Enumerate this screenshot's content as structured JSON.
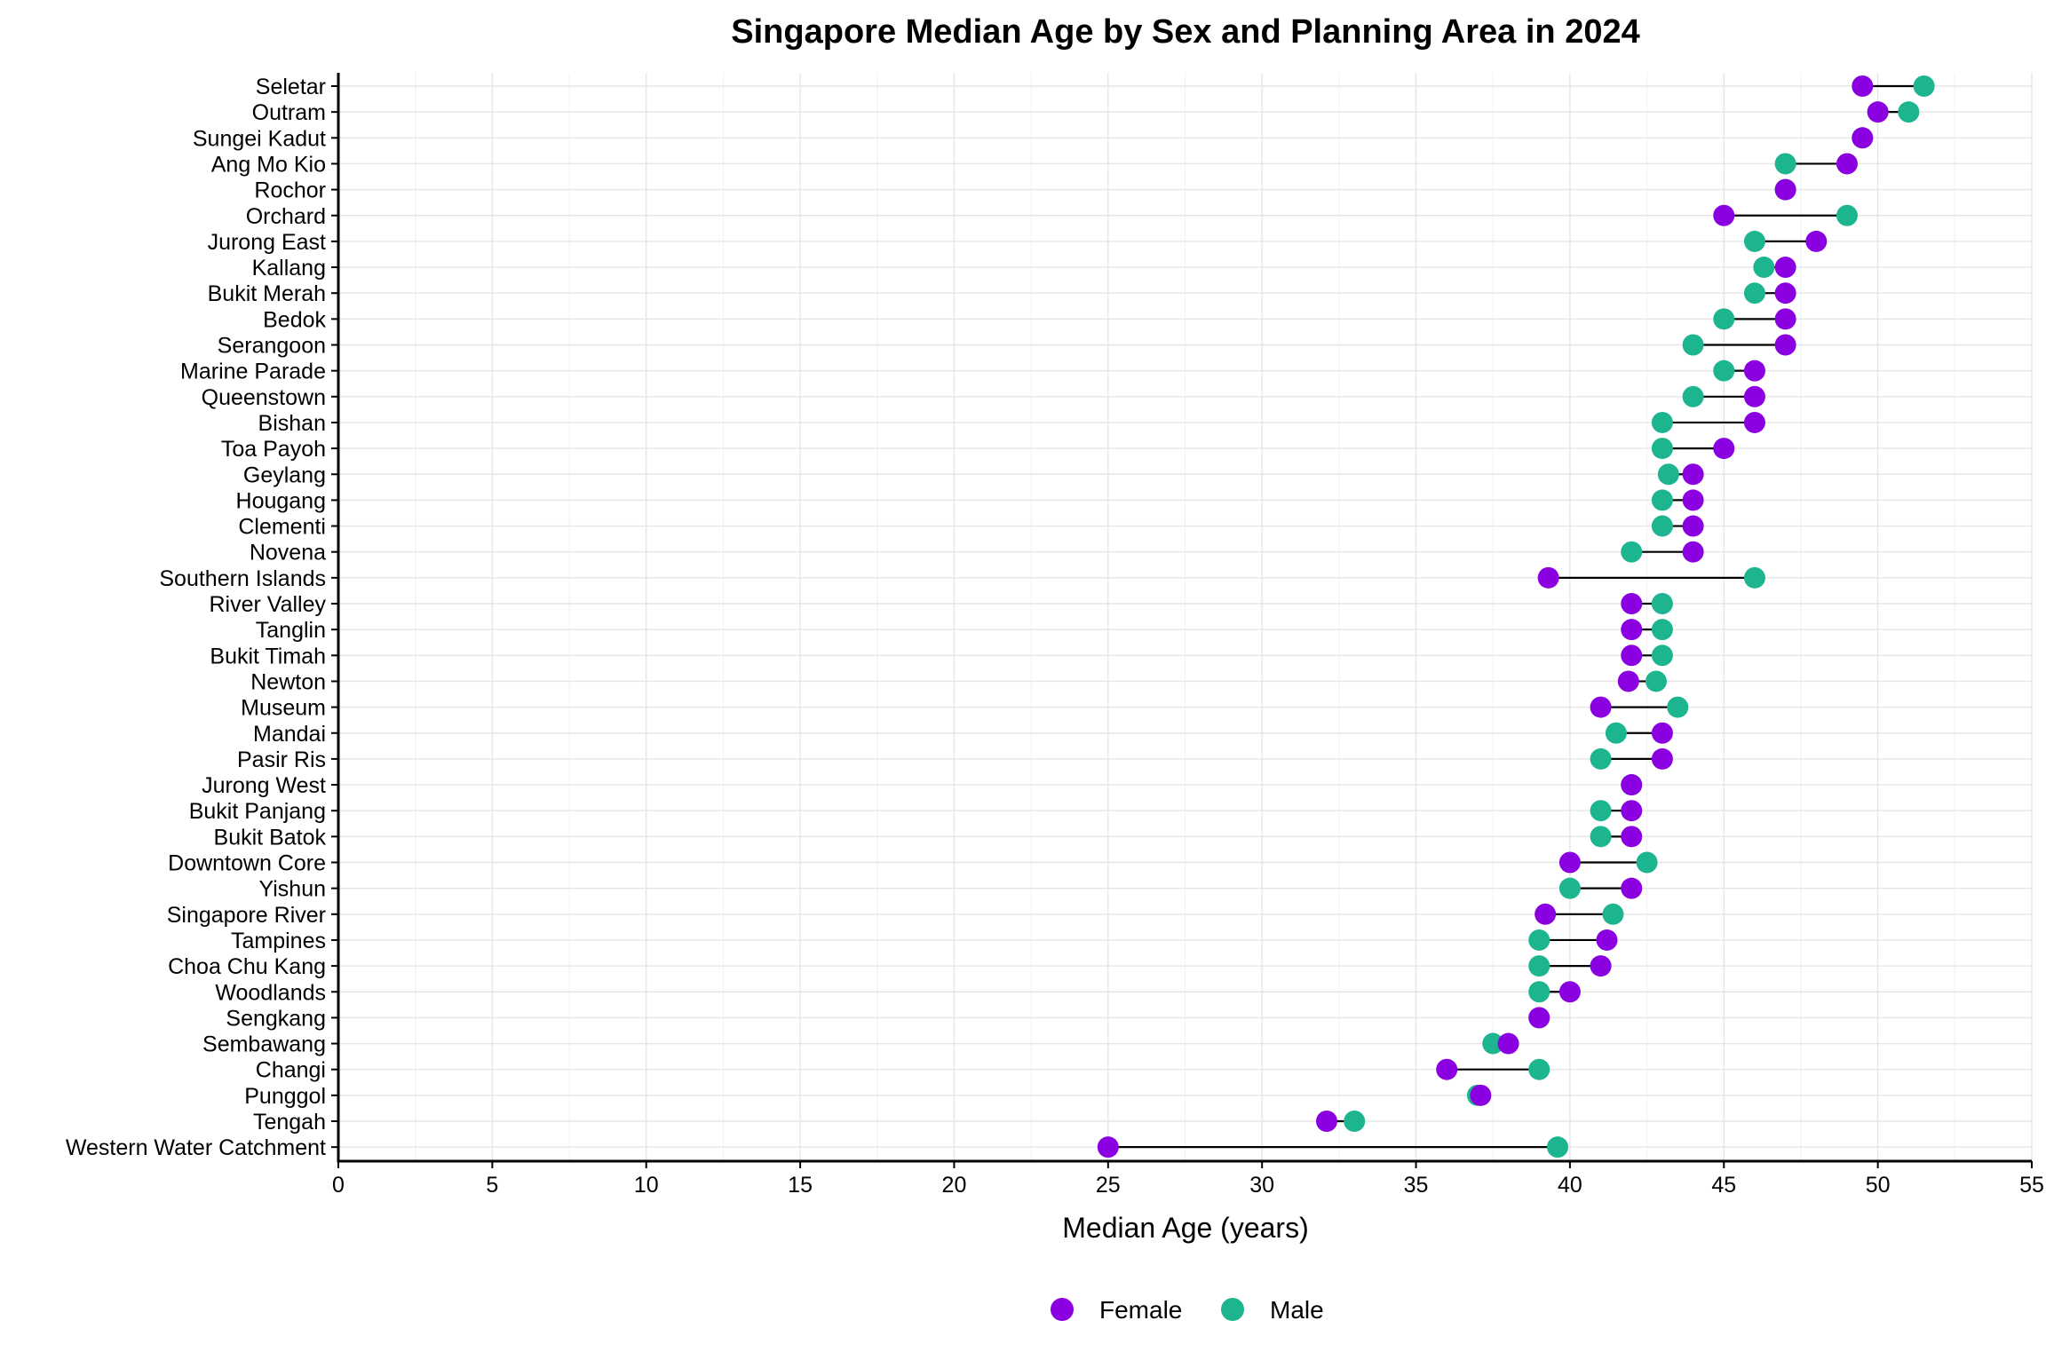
{
  "chart_data": {
    "type": "scatter",
    "subtype": "dumbbell",
    "title": "Singapore Median Age by Sex and Planning Area in 2024",
    "xlabel": "Median Age (years)",
    "ylabel": "",
    "xlim": [
      0,
      55
    ],
    "x_ticks": [
      "0",
      "5",
      "10",
      "15",
      "20",
      "25",
      "30",
      "35",
      "40",
      "45",
      "50",
      "55"
    ],
    "x_tick_values": [
      0,
      5,
      10,
      15,
      20,
      25,
      30,
      35,
      40,
      45,
      50,
      55
    ],
    "grid": true,
    "legend_position": "bottom",
    "colors": {
      "Female": "#8B00E0",
      "Male": "#1DB58F"
    },
    "categories": [
      "Seletar",
      "Outram",
      "Sungei Kadut",
      "Ang Mo Kio",
      "Rochor",
      "Orchard",
      "Jurong East",
      "Kallang",
      "Bukit Merah",
      "Bedok",
      "Serangoon",
      "Marine Parade",
      "Queenstown",
      "Bishan",
      "Toa Payoh",
      "Geylang",
      "Hougang",
      "Clementi",
      "Novena",
      "Southern Islands",
      "River Valley",
      "Tanglin",
      "Bukit Timah",
      "Newton",
      "Museum",
      "Mandai",
      "Pasir Ris",
      "Jurong West",
      "Bukit Panjang",
      "Bukit Batok",
      "Downtown Core",
      "Yishun",
      "Singapore River",
      "Tampines",
      "Choa Chu Kang",
      "Woodlands",
      "Sengkang",
      "Sembawang",
      "Changi",
      "Punggol",
      "Tengah",
      "Western Water Catchment"
    ],
    "series": [
      {
        "name": "Female",
        "values": [
          49.5,
          50,
          49.5,
          49,
          47,
          45,
          48,
          47,
          47,
          47,
          47,
          46,
          46,
          46,
          45,
          44,
          44,
          44,
          44,
          39.3,
          42,
          42,
          42,
          41.9,
          41,
          43,
          43,
          42,
          42,
          42,
          40,
          42,
          39.2,
          41.2,
          41,
          40,
          39,
          38,
          36,
          37.1,
          32.1,
          25
        ]
      },
      {
        "name": "Male",
        "values": [
          51.5,
          51,
          49.5,
          47,
          47,
          49,
          46,
          46.3,
          46,
          45,
          44,
          45,
          44,
          43,
          43,
          43.2,
          43,
          43,
          42,
          46,
          43,
          43,
          43,
          42.8,
          43.5,
          41.5,
          41,
          42,
          41,
          41,
          42.5,
          40,
          41.4,
          39,
          39,
          39,
          39,
          37.5,
          39,
          37,
          33,
          39.6
        ]
      }
    ]
  }
}
